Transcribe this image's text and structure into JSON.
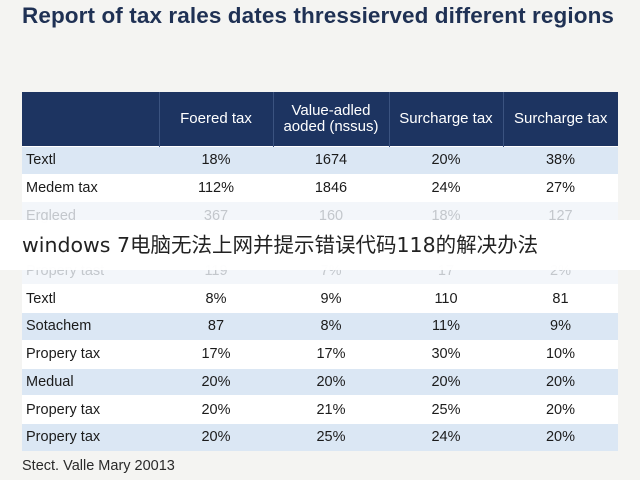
{
  "title": "Report of tax rales dates thressierved different regions",
  "table": {
    "headers": [
      "",
      "Foered tax",
      "Value-adled aoded (nssus)",
      "Surcharge tax",
      "Surcharge tax"
    ],
    "rows": [
      [
        "Textl",
        "18%",
        "1674",
        "20%",
        "38%"
      ],
      [
        "Medem tax",
        "112%",
        "1846",
        "24%",
        "27%"
      ],
      [
        "Ergleed",
        "367",
        "160",
        "18%",
        "127"
      ],
      [
        "",
        "",
        "",
        "",
        ""
      ],
      [
        "Propery tast",
        "119",
        "7%",
        "17",
        "2%"
      ],
      [
        "Textl",
        "8%",
        "9%",
        "110",
        "81"
      ],
      [
        "Sotachem",
        "87",
        "8%",
        "11%",
        "9%"
      ],
      [
        "Propery tax",
        "17%",
        "17%",
        "30%",
        "10%"
      ],
      [
        "Medual",
        "20%",
        "20%",
        "20%",
        "20%"
      ],
      [
        "Propery tax",
        "20%",
        "21%",
        "25%",
        "20%"
      ],
      [
        "Propery tax",
        "20%",
        "25%",
        "24%",
        "20%"
      ]
    ]
  },
  "overlay_text": "windows 7电脑无法上网并提示错误代码118的解决办法",
  "source": "Stect. Valle Mary 20013",
  "colors": {
    "header_bg": "#1d3461",
    "row_alt": "#dbe7f4",
    "title": "#1f3154"
  }
}
